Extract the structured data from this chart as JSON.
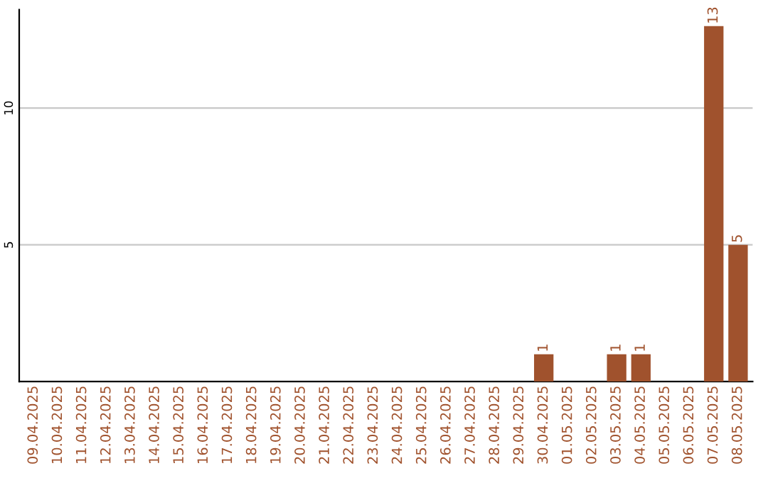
{
  "chart_data": {
    "type": "bar",
    "categories": [
      "09.04.2025",
      "10.04.2025",
      "11.04.2025",
      "12.04.2025",
      "13.04.2025",
      "14.04.2025",
      "15.04.2025",
      "16.04.2025",
      "17.04.2025",
      "18.04.2025",
      "19.04.2025",
      "20.04.2025",
      "21.04.2025",
      "22.04.2025",
      "23.04.2025",
      "24.04.2025",
      "25.04.2025",
      "26.04.2025",
      "27.04.2025",
      "28.04.2025",
      "29.04.2025",
      "30.04.2025",
      "01.05.2025",
      "02.05.2025",
      "03.05.2025",
      "04.05.2025",
      "05.05.2025",
      "06.05.2025",
      "07.05.2025",
      "08.05.2025"
    ],
    "values": [
      0,
      0,
      0,
      0,
      0,
      0,
      0,
      0,
      0,
      0,
      0,
      0,
      0,
      0,
      0,
      0,
      0,
      0,
      0,
      0,
      0,
      1,
      0,
      0,
      1,
      1,
      0,
      0,
      13,
      5
    ],
    "value_labels": [
      null,
      null,
      null,
      null,
      null,
      null,
      null,
      null,
      null,
      null,
      null,
      null,
      null,
      null,
      null,
      null,
      null,
      null,
      null,
      null,
      null,
      "1",
      null,
      null,
      "1",
      "1",
      null,
      null,
      "13",
      "5"
    ],
    "color": "#a0522d",
    "ylim": [
      0,
      13.6
    ],
    "yticks": [
      5,
      10
    ],
    "grid": "y"
  }
}
